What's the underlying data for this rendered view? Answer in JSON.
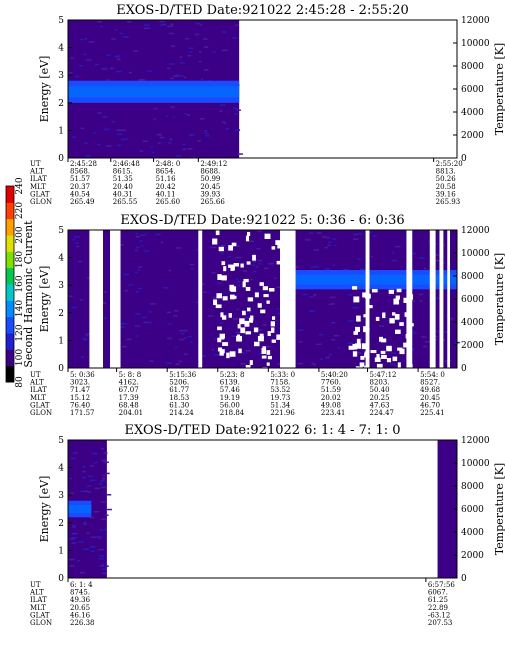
{
  "colorbar": {
    "label": "Second Harmonic Current",
    "ticks": [
      "80",
      "100",
      "120",
      "140",
      "160",
      "180",
      "200",
      "220",
      "240"
    ],
    "colors": [
      "#000000",
      "#3b0086",
      "#2020d0",
      "#1a4cff",
      "#008cff",
      "#00c8c8",
      "#00c850",
      "#7ee000",
      "#e0e000",
      "#ffa000",
      "#ff4000",
      "#e00000"
    ]
  },
  "chart_data": [
    {
      "type": "heatmap",
      "title": "EXOS-D/TED   Date:921022  2:45:28 - 2:55:20",
      "ylabel": "Energy [eV]",
      "y2label": "Temperature [K]",
      "ylim": [
        0,
        5
      ],
      "y2lim": [
        0,
        12000
      ],
      "yticks": [
        "0",
        "1",
        "2",
        "3",
        "4",
        "5"
      ],
      "y2ticks": [
        "0",
        "2000",
        "4000",
        "6000",
        "8000",
        "10000",
        "12000"
      ],
      "data_extent_fraction": 0.44,
      "gaps": [],
      "band": {
        "center_ev": 2.4,
        "width_ev": 0.8,
        "start_fraction": 0.0,
        "end_fraction": 0.44
      },
      "ephemeris": {
        "labels": [
          "UT",
          "ALT",
          "ILAT",
          "MLT",
          "GLAT",
          "GLON"
        ],
        "columns": [
          {
            "pos": 0.0,
            "values": [
              "2:45:28",
              "8568.",
              "51.57",
              "20.37",
              "40.54",
              "265.49"
            ]
          },
          {
            "pos": 0.11,
            "values": [
              "2:46:48",
              "8615.",
              "51.35",
              "20.40",
              "40.31",
              "265.55"
            ]
          },
          {
            "pos": 0.22,
            "values": [
              "2:48: 0",
              "8654.",
              "51.16",
              "20.42",
              "40.11",
              "265.60"
            ]
          },
          {
            "pos": 0.335,
            "values": [
              "2:49:12",
              "8688.",
              "50.99",
              "20.45",
              "39.93",
              "265.66"
            ]
          },
          {
            "pos": 0.94,
            "values": [
              "2:55:20",
              "8813.",
              "50.26",
              "20.58",
              "39.16",
              "265.93"
            ]
          }
        ]
      }
    },
    {
      "type": "heatmap",
      "title": "EXOS-D/TED   Date:921022  5: 0:36 - 6: 0:36",
      "ylabel": "Energy [eV]",
      "y2label": "Temperature [K]",
      "ylim": [
        0,
        5
      ],
      "y2lim": [
        0,
        12000
      ],
      "yticks": [
        "0",
        "1",
        "2",
        "3",
        "4",
        "5"
      ],
      "y2ticks": [
        "0",
        "2000",
        "4000",
        "6000",
        "8000",
        "10000",
        "12000"
      ],
      "data_extent_fraction": 1.0,
      "gaps": [
        [
          0.055,
          0.09
        ],
        [
          0.108,
          0.135
        ],
        [
          0.335,
          0.345
        ],
        [
          0.545,
          0.585
        ],
        [
          0.765,
          0.775
        ],
        [
          0.87,
          0.885
        ],
        [
          0.93,
          0.945
        ],
        [
          0.955,
          0.965
        ],
        [
          0.975,
          0.982
        ]
      ],
      "band": {
        "center_ev": 3.2,
        "width_ev": 0.7,
        "start_fraction": 0.58,
        "end_fraction": 1.0
      },
      "ephemeris": {
        "labels": [
          "UT",
          "ALT",
          "ILAT",
          "MLT",
          "GLAT",
          "GLON"
        ],
        "columns": [
          {
            "pos": 0.0,
            "values": [
              "5: 0:36",
              "3023.",
              "71.47",
              "15.12",
              "76.40",
              "171.57"
            ]
          },
          {
            "pos": 0.125,
            "values": [
              "5: 8: 8",
              "4162.",
              "67.07",
              "17.39",
              "68.48",
              "204.01"
            ]
          },
          {
            "pos": 0.255,
            "values": [
              "5:15:36",
              "5206.",
              "61.77",
              "18.53",
              "61.30",
              "214.24"
            ]
          },
          {
            "pos": 0.385,
            "values": [
              "5:23: 8",
              "6139.",
              "57.46",
              "19.19",
              "56.00",
              "218.84"
            ]
          },
          {
            "pos": 0.515,
            "values": [
              "5:33: 0",
              "7158.",
              "53.52",
              "19.73",
              "51.34",
              "221.96"
            ]
          },
          {
            "pos": 0.645,
            "values": [
              "5:40:20",
              "7760.",
              "51.59",
              "20.02",
              "49.08",
              "223.41"
            ]
          },
          {
            "pos": 0.77,
            "values": [
              "5:47:12",
              "8203.",
              "50.40",
              "20.25",
              "47.63",
              "224.47"
            ]
          },
          {
            "pos": 0.9,
            "values": [
              "5:54: 0",
              "8527.",
              "49.68",
              "20.45",
              "46.70",
              "225.41"
            ]
          }
        ]
      }
    },
    {
      "type": "heatmap",
      "title": "EXOS-D/TED   Date:921022  6: 1: 4 - 7: 1: 0",
      "ylabel": "Energy [eV]",
      "y2label": "Temperature [K]",
      "ylim": [
        0,
        5
      ],
      "y2lim": [
        0,
        12000
      ],
      "yticks": [
        "0",
        "1",
        "2",
        "3",
        "4",
        "5"
      ],
      "y2ticks": [
        "0",
        "2000",
        "4000",
        "6000",
        "8000",
        "10000",
        "12000"
      ],
      "data_extent_fraction": 0.1,
      "tail_fraction": 0.95,
      "gaps": [],
      "band": {
        "center_ev": 2.5,
        "width_ev": 0.6,
        "start_fraction": 0.0,
        "end_fraction": 0.06
      },
      "ephemeris": {
        "labels": [
          "UT",
          "ALT",
          "ILAT",
          "MLT",
          "GLAT",
          "GLON"
        ],
        "columns": [
          {
            "pos": 0.0,
            "values": [
              "6: 1: 4",
              "8745.",
              "49.36",
              "20.65",
              "46.16",
              "226.38"
            ]
          },
          {
            "pos": 0.92,
            "values": [
              "6:57:56",
              "6067.",
              "61.25",
              "22.89",
              "-63.12",
              "207.53"
            ]
          }
        ]
      }
    }
  ]
}
